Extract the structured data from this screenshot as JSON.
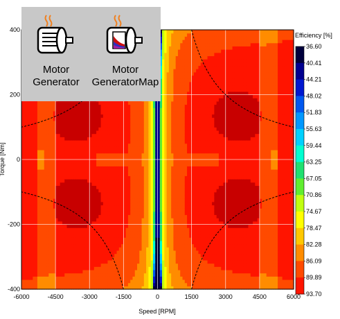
{
  "palette": {
    "items": [
      {
        "label": "Motor\nGenerator",
        "icon": "motor-generator-icon"
      },
      {
        "label": "Motor\nGeneratorMap",
        "icon": "motor-generator-map-icon"
      }
    ]
  },
  "chart_data": {
    "type": "heatmap",
    "title": "",
    "xlabel": "Speed [RPM]",
    "ylabel": "Torque [Nm]",
    "xlim": [
      -6000,
      6000
    ],
    "ylim": [
      -400,
      400
    ],
    "xticks": [
      -6000,
      -4500,
      -3000,
      -1500,
      0,
      1500,
      3000,
      4500,
      6000
    ],
    "yticks": [
      -400,
      -200,
      0,
      200,
      400
    ],
    "xtick_labels": [
      "-6000",
      "-4500",
      "-3000",
      "-1500",
      "0",
      "1500",
      "3000",
      "4500",
      "6000"
    ],
    "ytick_labels": [
      "-400",
      "-200",
      "0",
      "200",
      "400"
    ],
    "grid": true,
    "colorbar": {
      "title": "Efficiency [%]",
      "levels": [
        "36.60",
        "40.41",
        "44.21",
        "48.02",
        "51.83",
        "55.63",
        "59.44",
        "63.25",
        "67.05",
        "70.86",
        "74.67",
        "78.47",
        "82.28",
        "86.09",
        "89.89",
        "93.70"
      ],
      "colors": [
        "#00003c",
        "#000090",
        "#0018d0",
        "#0058f0",
        "#0098ff",
        "#00d0ff",
        "#00ffd0",
        "#20e070",
        "#60ee30",
        "#c0ff10",
        "#ffff00",
        "#ffc800",
        "#ff8c00",
        "#ff4a00",
        "#ff1400",
        "#c80000"
      ]
    },
    "boundary_curve": {
      "base_speed_rpm": 1500,
      "max_torque_nm": 400,
      "style": "dashed"
    }
  }
}
